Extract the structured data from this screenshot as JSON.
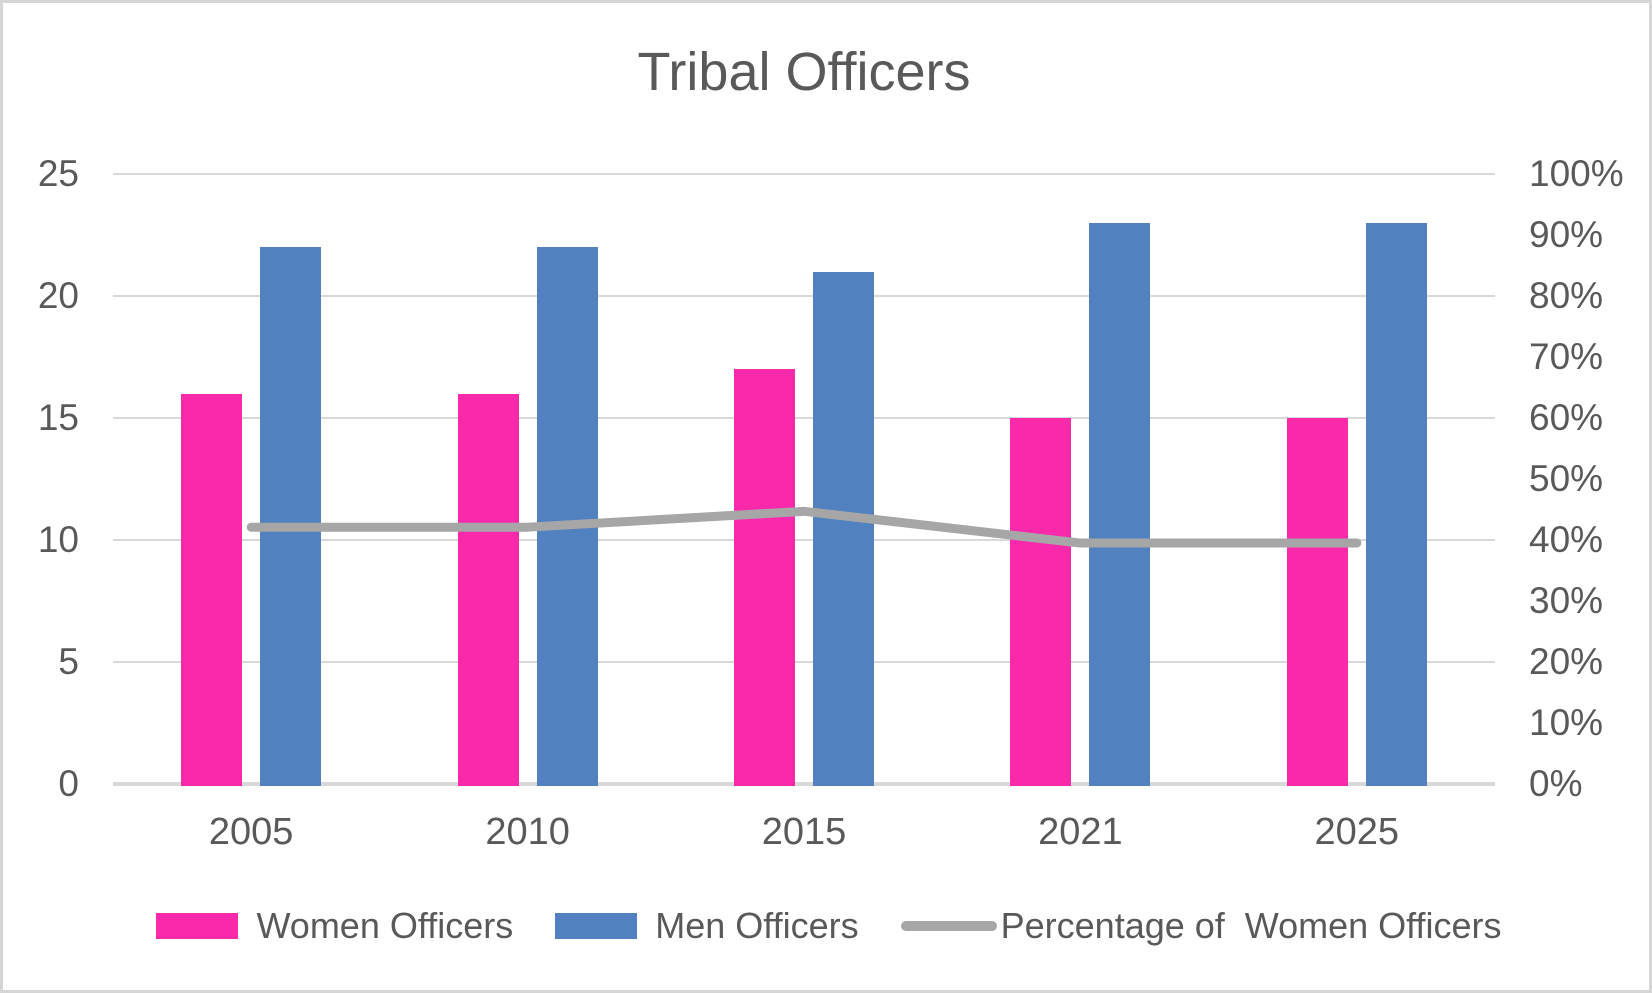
{
  "chart_data": {
    "type": "bar+line combo",
    "title": "Tribal Officers",
    "categories": [
      "2005",
      "2010",
      "2015",
      "2021",
      "2025"
    ],
    "series": [
      {
        "name": "Women Officers",
        "type": "bar",
        "axis": "left",
        "color": "#f929ac",
        "values": [
          16,
          16,
          17,
          15,
          15
        ]
      },
      {
        "name": "Men Officers",
        "type": "bar",
        "axis": "left",
        "color": "#5181bf",
        "values": [
          22,
          22,
          21,
          23,
          23
        ]
      },
      {
        "name": "Percentage of  Women Officers",
        "type": "line",
        "axis": "right",
        "color": "#a6a6a6",
        "values": [
          42.1,
          42.1,
          44.7,
          39.5,
          39.5
        ]
      }
    ],
    "left_axis": {
      "min": 0,
      "max": 25,
      "tick_labels": [
        "25",
        "20",
        "15",
        "10",
        "5",
        "0"
      ],
      "tick_values": [
        25,
        20,
        15,
        10,
        5,
        0
      ]
    },
    "right_axis": {
      "min": 0,
      "max": 100,
      "tick_labels": [
        "100%",
        "90%",
        "80%",
        "70%",
        "60%",
        "50%",
        "40%",
        "30%",
        "20%",
        "10%",
        "0%"
      ],
      "tick_values": [
        100,
        90,
        80,
        70,
        60,
        50,
        40,
        30,
        20,
        10,
        0
      ]
    },
    "grid": "horizontal gridlines at left-axis ticks only",
    "legend_position": "bottom",
    "colors": {
      "women_bar": "#f929ac",
      "men_bar": "#5181bf",
      "percentage_line": "#a6a6a6",
      "text": "#595959",
      "gridline": "#d9d9d9",
      "frame_border": "#d6d6d6",
      "background": "#ffffff"
    }
  }
}
